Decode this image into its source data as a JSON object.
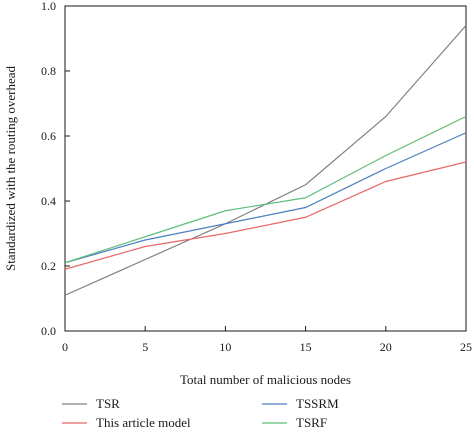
{
  "chart_data": {
    "type": "line",
    "title": "",
    "xlabel": "Total number of malicious nodes",
    "ylabel": "Standardized with the routing overhead",
    "x": [
      0,
      5,
      10,
      15,
      20,
      25
    ],
    "xlim": [
      0,
      25
    ],
    "ylim": [
      0,
      1.0
    ],
    "xticks": [
      "0",
      "5",
      "10",
      "15",
      "20",
      "25"
    ],
    "yticks": [
      "0.0",
      "0.2",
      "0.4",
      "0.6",
      "0.8",
      "1.0"
    ],
    "grid": false,
    "legend_position": "bottom",
    "series": [
      {
        "name": "TSR",
        "color": "#808080",
        "values": [
          0.11,
          0.22,
          0.33,
          0.45,
          0.66,
          0.94
        ]
      },
      {
        "name": "TSSRM",
        "color": "#4a7fc1",
        "values": [
          0.21,
          0.28,
          0.33,
          0.38,
          0.5,
          0.61
        ]
      },
      {
        "name": "This article model",
        "color": "#e8686a",
        "values": [
          0.19,
          0.26,
          0.3,
          0.35,
          0.46,
          0.52
        ]
      },
      {
        "name": "TSRF",
        "color": "#5dbf7a",
        "values": [
          0.21,
          0.29,
          0.37,
          0.41,
          0.54,
          0.66
        ]
      }
    ]
  }
}
